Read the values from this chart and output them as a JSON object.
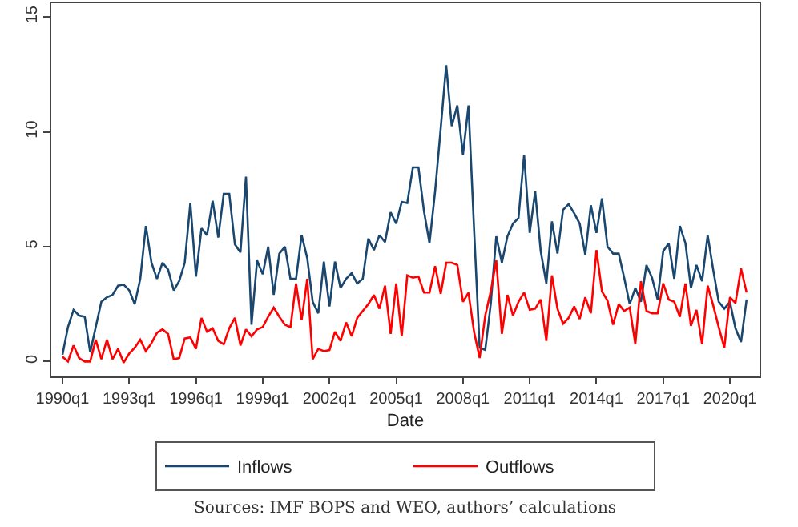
{
  "chart_data": {
    "type": "line",
    "xlabel": "Date",
    "annotations": [
      "Sources: IMF BOPS and WEO, authors’ calculations"
    ],
    "x": [
      "1990-01",
      "1990-04",
      "1990-07",
      "1990-10",
      "1991-01",
      "1991-04",
      "1991-07",
      "1991-10",
      "1992-01",
      "1992-04",
      "1992-07",
      "1992-10",
      "1993-01",
      "1993-04",
      "1993-07",
      "1993-10",
      "1994-01",
      "1994-04",
      "1994-07",
      "1994-10",
      "1995-01",
      "1995-04",
      "1995-07",
      "1995-10",
      "1996-01",
      "1996-04",
      "1996-07",
      "1996-10",
      "1997-01",
      "1997-04",
      "1997-07",
      "1997-10",
      "1998-01",
      "1998-04",
      "1998-07",
      "1998-10",
      "1999-01",
      "1999-04",
      "1999-07",
      "1999-10",
      "2000-01",
      "2000-04",
      "2000-07",
      "2000-10",
      "2001-01",
      "2001-04",
      "2001-07",
      "2001-10",
      "2002-01",
      "2002-04",
      "2002-07",
      "2002-10",
      "2003-01",
      "2003-04",
      "2003-07",
      "2003-10",
      "2004-01",
      "2004-04",
      "2004-07",
      "2004-10",
      "2005-01",
      "2005-04",
      "2005-07",
      "2005-10",
      "2006-01",
      "2006-04",
      "2006-07",
      "2006-10",
      "2007-01",
      "2007-04",
      "2007-07",
      "2007-10",
      "2008-01",
      "2008-04",
      "2008-07",
      "2008-10",
      "2009-01",
      "2009-04",
      "2009-07",
      "2009-10",
      "2010-01",
      "2010-04",
      "2010-07",
      "2010-10",
      "2011-01",
      "2011-04",
      "2011-07",
      "2011-10",
      "2012-01",
      "2012-04",
      "2012-07",
      "2012-10",
      "2013-01",
      "2013-04",
      "2013-07",
      "2013-10",
      "2014-01",
      "2014-04",
      "2014-07",
      "2014-10",
      "2015-01",
      "2015-04",
      "2015-07",
      "2015-10",
      "2016-01",
      "2016-04",
      "2016-07",
      "2016-10",
      "2017-01",
      "2017-04",
      "2017-07",
      "2017-10",
      "2018-01",
      "2018-04",
      "2018-07",
      "2018-10",
      "2019-01",
      "2019-04",
      "2019-07",
      "2019-10",
      "2020-01",
      "2020-04",
      "2020-07",
      "2020-10"
    ],
    "series": [
      {
        "name": "Inflows",
        "color": "#1a476f",
        "values": [
          0.3,
          1.5,
          2.25,
          2.0,
          1.95,
          0.4,
          1.5,
          2.6,
          2.8,
          2.9,
          3.3,
          3.35,
          3.1,
          2.5,
          3.6,
          5.9,
          4.3,
          3.6,
          4.3,
          4.0,
          3.1,
          3.5,
          4.3,
          6.9,
          3.7,
          5.8,
          5.5,
          7.0,
          5.4,
          7.3,
          7.3,
          5.1,
          4.75,
          8.05,
          1.6,
          4.4,
          3.8,
          5.0,
          2.9,
          4.7,
          5.0,
          3.6,
          3.6,
          5.5,
          4.5,
          2.6,
          2.1,
          4.35,
          2.4,
          4.35,
          3.2,
          3.6,
          3.85,
          3.4,
          3.6,
          5.35,
          4.85,
          5.5,
          5.2,
          6.5,
          6.0,
          6.95,
          6.9,
          8.45,
          8.45,
          6.55,
          5.15,
          7.4,
          10.15,
          12.9,
          10.25,
          11.15,
          9.0,
          11.15,
          5.8,
          0.6,
          0.5,
          2.5,
          5.45,
          4.3,
          5.45,
          6.0,
          6.25,
          9.0,
          5.6,
          7.4,
          4.8,
          3.4,
          6.1,
          4.7,
          6.6,
          6.85,
          6.45,
          6.0,
          4.65,
          6.8,
          5.6,
          7.1,
          5.0,
          4.7,
          4.7,
          3.65,
          2.5,
          3.2,
          2.6,
          4.2,
          3.65,
          2.7,
          4.8,
          5.15,
          3.6,
          5.9,
          5.15,
          3.2,
          4.2,
          3.5,
          5.5,
          4.0,
          2.6,
          2.3,
          2.6,
          1.45,
          0.85,
          2.7
        ]
      },
      {
        "name": "Outflows",
        "color": "#ff0000",
        "values": [
          0.2,
          0.0,
          0.7,
          0.15,
          0.0,
          0.0,
          0.95,
          0.1,
          0.95,
          0.1,
          0.55,
          -0.05,
          0.35,
          0.6,
          0.95,
          0.45,
          0.8,
          1.25,
          1.4,
          1.2,
          0.1,
          0.15,
          1.0,
          1.05,
          0.55,
          1.9,
          1.3,
          1.45,
          0.9,
          0.75,
          1.45,
          1.9,
          0.7,
          1.4,
          1.1,
          1.4,
          1.5,
          1.95,
          2.35,
          1.95,
          1.6,
          1.5,
          3.4,
          1.8,
          3.6,
          0.1,
          0.55,
          0.45,
          0.5,
          1.3,
          0.9,
          1.7,
          1.1,
          1.9,
          2.2,
          2.5,
          2.9,
          2.3,
          3.3,
          1.2,
          3.4,
          1.1,
          3.75,
          3.65,
          3.7,
          3.0,
          3.0,
          4.15,
          2.95,
          4.3,
          4.3,
          4.2,
          2.6,
          3.0,
          1.3,
          0.15,
          2.0,
          3.05,
          4.4,
          1.2,
          2.9,
          2.0,
          2.6,
          3.0,
          2.25,
          2.3,
          2.7,
          0.9,
          3.75,
          2.3,
          1.65,
          1.9,
          2.4,
          1.85,
          2.8,
          2.1,
          4.85,
          3.05,
          2.65,
          1.6,
          2.5,
          2.2,
          2.35,
          0.75,
          3.5,
          2.2,
          2.1,
          2.1,
          3.4,
          2.7,
          2.6,
          1.95,
          3.4,
          1.55,
          2.25,
          0.75,
          3.3,
          2.45,
          1.5,
          0.6,
          2.8,
          2.55,
          4.05,
          3.0
        ]
      }
    ],
    "xlim": [
      "1989-07",
      "2021-05"
    ],
    "xticks": [
      {
        "value": "1990-01",
        "label": "1990q1"
      },
      {
        "value": "1993-01",
        "label": "1993q1"
      },
      {
        "value": "1996-01",
        "label": "1996q1"
      },
      {
        "value": "1999-01",
        "label": "1999q1"
      },
      {
        "value": "2002-01",
        "label": "2002q1"
      },
      {
        "value": "2005-01",
        "label": "2005q1"
      },
      {
        "value": "2008-01",
        "label": "2008q1"
      },
      {
        "value": "2011-01",
        "label": "2011q1"
      },
      {
        "value": "2014-01",
        "label": "2014q1"
      },
      {
        "value": "2017-01",
        "label": "2017q1"
      },
      {
        "value": "2020-01",
        "label": "2020q1"
      }
    ],
    "ylim": [
      -0.65,
      15.6
    ],
    "yticks": [
      0,
      5,
      10,
      15
    ],
    "legend": "bottom",
    "marker": "none",
    "line_style": "solid"
  }
}
